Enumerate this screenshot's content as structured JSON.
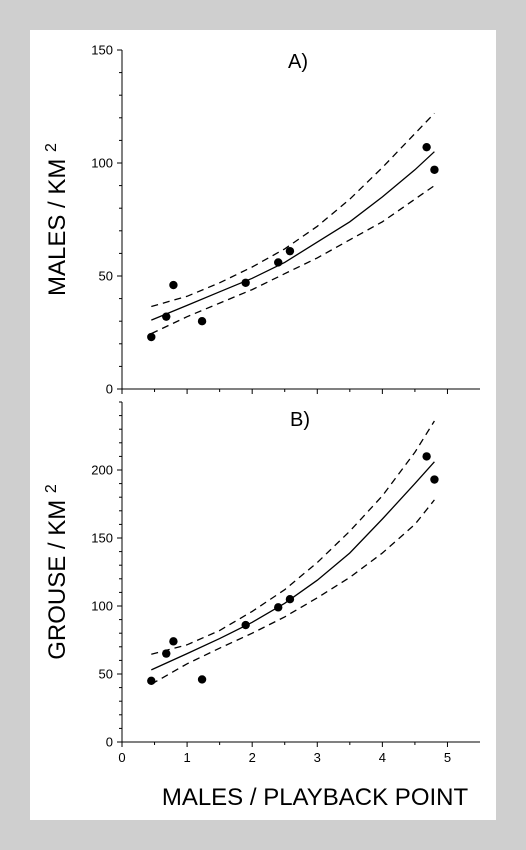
{
  "chart_data": [
    {
      "type": "scatter",
      "panel_label": "A)",
      "ylabel": "MALES / KM",
      "ylabel_superscript": "2",
      "xlim": [
        0,
        5.5
      ],
      "ylim": [
        0,
        150
      ],
      "x_ticks": [
        "0",
        "1",
        "2",
        "3",
        "4",
        "5"
      ],
      "y_ticks": [
        "0",
        "50",
        "100",
        "150"
      ],
      "points": [
        {
          "x": 0.45,
          "y": 23
        },
        {
          "x": 0.68,
          "y": 32
        },
        {
          "x": 0.79,
          "y": 46
        },
        {
          "x": 1.23,
          "y": 30
        },
        {
          "x": 1.9,
          "y": 47
        },
        {
          "x": 2.4,
          "y": 56
        },
        {
          "x": 2.58,
          "y": 61
        },
        {
          "x": 4.68,
          "y": 107
        },
        {
          "x": 4.8,
          "y": 97
        }
      ],
      "fit": {
        "x": [
          0.45,
          1.0,
          1.5,
          2.0,
          2.5,
          3.0,
          3.5,
          4.0,
          4.5,
          4.8
        ],
        "y": [
          30.5,
          37,
          43,
          49,
          56,
          65,
          74,
          85,
          97,
          105
        ]
      },
      "upper_ci": {
        "x": [
          0.45,
          1.0,
          1.5,
          2.0,
          2.5,
          3.0,
          3.5,
          4.0,
          4.5,
          4.8
        ],
        "y": [
          36.5,
          41,
          47,
          54,
          62,
          72,
          84,
          98,
          113,
          122
        ]
      },
      "lower_ci": {
        "x": [
          0.45,
          1.0,
          1.5,
          2.0,
          2.5,
          3.0,
          3.5,
          4.0,
          4.5,
          4.8
        ],
        "y": [
          24.5,
          32,
          38,
          44,
          51,
          58,
          66,
          74,
          84,
          90
        ]
      }
    },
    {
      "type": "scatter",
      "panel_label": "B)",
      "ylabel": "GROUSE / KM",
      "ylabel_superscript": "2",
      "xlabel": "MALES / PLAYBACK POINT",
      "xlim": [
        0,
        5.5
      ],
      "ylim": [
        0,
        250
      ],
      "x_ticks": [
        "0",
        "1",
        "2",
        "3",
        "4",
        "5"
      ],
      "y_ticks": [
        "0",
        "50",
        "100",
        "150",
        "200"
      ],
      "points": [
        {
          "x": 0.45,
          "y": 45
        },
        {
          "x": 0.68,
          "y": 65
        },
        {
          "x": 0.79,
          "y": 74
        },
        {
          "x": 1.23,
          "y": 46
        },
        {
          "x": 1.9,
          "y": 86
        },
        {
          "x": 2.4,
          "y": 99
        },
        {
          "x": 2.58,
          "y": 105
        },
        {
          "x": 4.68,
          "y": 210
        },
        {
          "x": 4.8,
          "y": 193
        }
      ],
      "fit": {
        "x": [
          0.45,
          1.0,
          1.5,
          2.0,
          2.5,
          3.0,
          3.5,
          4.0,
          4.5,
          4.8
        ],
        "y": [
          53,
          65,
          76,
          88,
          102,
          119,
          139,
          164,
          190,
          206
        ]
      },
      "upper_ci": {
        "x": [
          0.45,
          1.0,
          1.5,
          2.0,
          2.5,
          3.0,
          3.5,
          4.0,
          4.5,
          4.8
        ],
        "y": [
          64.5,
          71.5,
          82,
          96,
          112,
          132,
          155,
          181,
          213,
          236
        ]
      },
      "lower_ci": {
        "x": [
          0.45,
          1.0,
          1.5,
          2.0,
          2.5,
          3.0,
          3.5,
          4.0,
          4.5,
          4.8
        ],
        "y": [
          42.5,
          57.5,
          69,
          80,
          92,
          106,
          121,
          139,
          160,
          178
        ]
      }
    }
  ]
}
